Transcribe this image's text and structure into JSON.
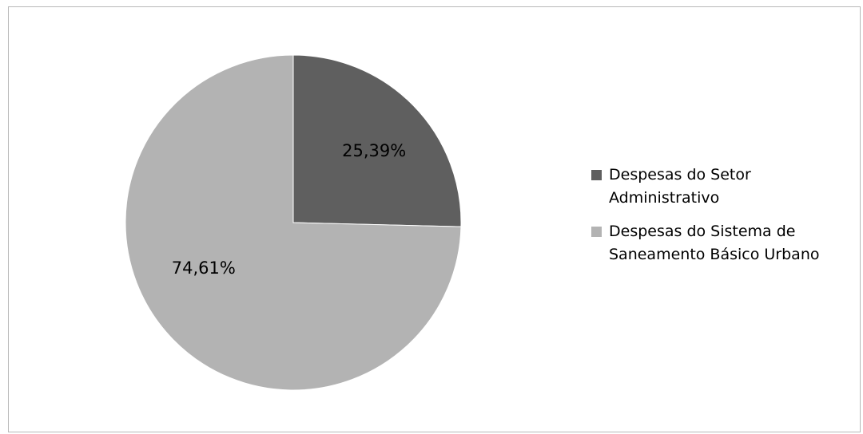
{
  "chart_data": {
    "type": "pie",
    "slices": [
      {
        "label": "Despesas do Setor\nAdministrativo",
        "legend_text": " Despesas do Setor\nAdministrativo",
        "value": 25.39,
        "value_label": "25,39%",
        "color": "#5f5f5f"
      },
      {
        "label": "Despesas do Sistema de\nSaneamento Básico Urbano",
        "legend_text": "Despesas do Sistema de\nSaneamento Básico Urbano",
        "value": 74.61,
        "value_label": "74,61%",
        "color": "#b3b3b3"
      }
    ],
    "legend_position": "right"
  }
}
